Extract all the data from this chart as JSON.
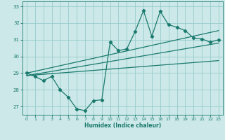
{
  "xlabel": "Humidex (Indice chaleur)",
  "bg_color": "#cce8e8",
  "grid_color": "#99cccc",
  "line_color": "#1a7a6e",
  "xlim": [
    -0.5,
    23.5
  ],
  "ylim": [
    26.5,
    33.3
  ],
  "yticks": [
    27,
    28,
    29,
    30,
    31,
    32,
    33
  ],
  "xticks": [
    0,
    1,
    2,
    3,
    4,
    5,
    6,
    7,
    8,
    9,
    10,
    11,
    12,
    13,
    14,
    15,
    16,
    17,
    18,
    19,
    20,
    21,
    22,
    23
  ],
  "main_series_x": [
    0,
    1,
    2,
    3,
    4,
    5,
    6,
    7,
    8,
    9,
    10,
    11,
    12,
    13,
    14,
    15,
    16,
    17,
    18,
    19,
    20,
    21,
    22,
    23
  ],
  "main_series_y": [
    29.0,
    28.8,
    28.55,
    28.8,
    28.0,
    27.55,
    26.85,
    26.75,
    27.35,
    27.4,
    30.85,
    30.35,
    30.45,
    31.5,
    32.75,
    31.2,
    32.7,
    31.9,
    31.75,
    31.55,
    31.1,
    31.05,
    30.85,
    31.0
  ],
  "trend_line1_x": [
    0,
    23
  ],
  "trend_line1_y": [
    29.0,
    31.55
  ],
  "trend_line2_x": [
    0,
    23
  ],
  "trend_line2_y": [
    28.85,
    30.8
  ],
  "trend_line3_x": [
    0,
    23
  ],
  "trend_line3_y": [
    28.85,
    29.75
  ]
}
